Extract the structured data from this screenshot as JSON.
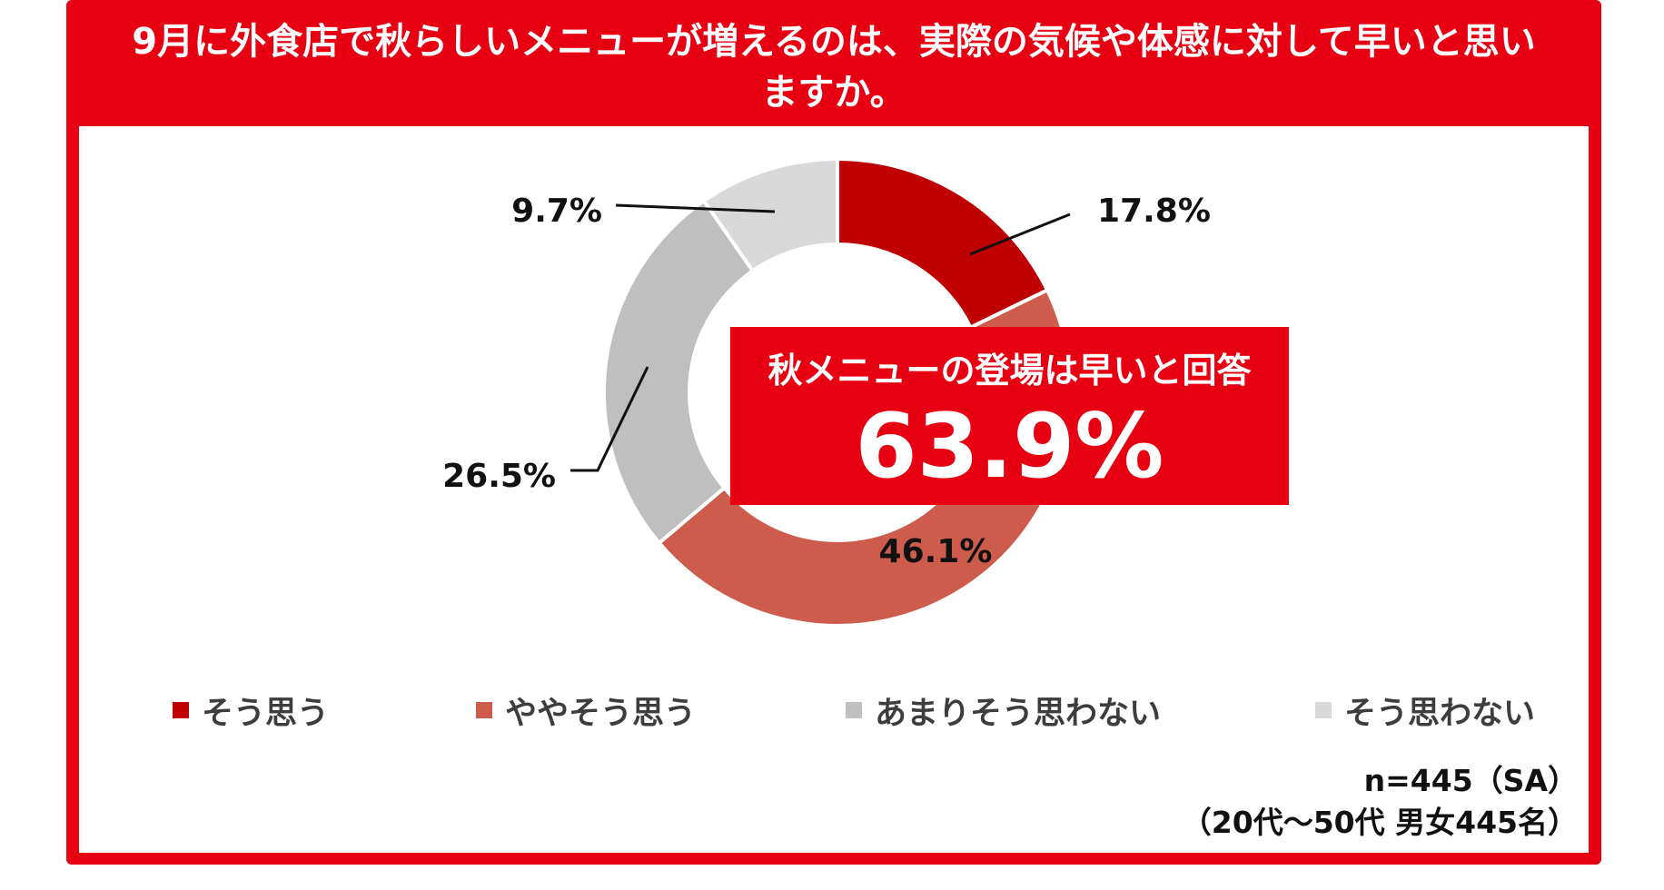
{
  "title_line1": "9月に外食店で秋らしいメニューが増えるのは、実際の気候や体感に対して早いと思い",
  "title_line2": "ますか。",
  "callout": {
    "label": "秋メニューの登場は早いと回答",
    "value": "63.9%"
  },
  "note_line1": "n=445（SA）",
  "note_line2": "（20代～50代 男女445名）",
  "colors": {
    "frame": "#e60012",
    "callout": "#e60012"
  },
  "chart_data": {
    "type": "donut",
    "categories": [
      "そう思う",
      "ややそう思う",
      "あまりそう思わない",
      "そう思わない"
    ],
    "values": [
      17.8,
      46.1,
      26.5,
      9.7
    ],
    "labels": [
      "17.8%",
      "46.1%",
      "26.5%",
      "9.7%"
    ],
    "colors": [
      "#c00000",
      "#cd5c4c",
      "#bfbfbf",
      "#d9d9d9"
    ],
    "legend_position": "bottom"
  }
}
